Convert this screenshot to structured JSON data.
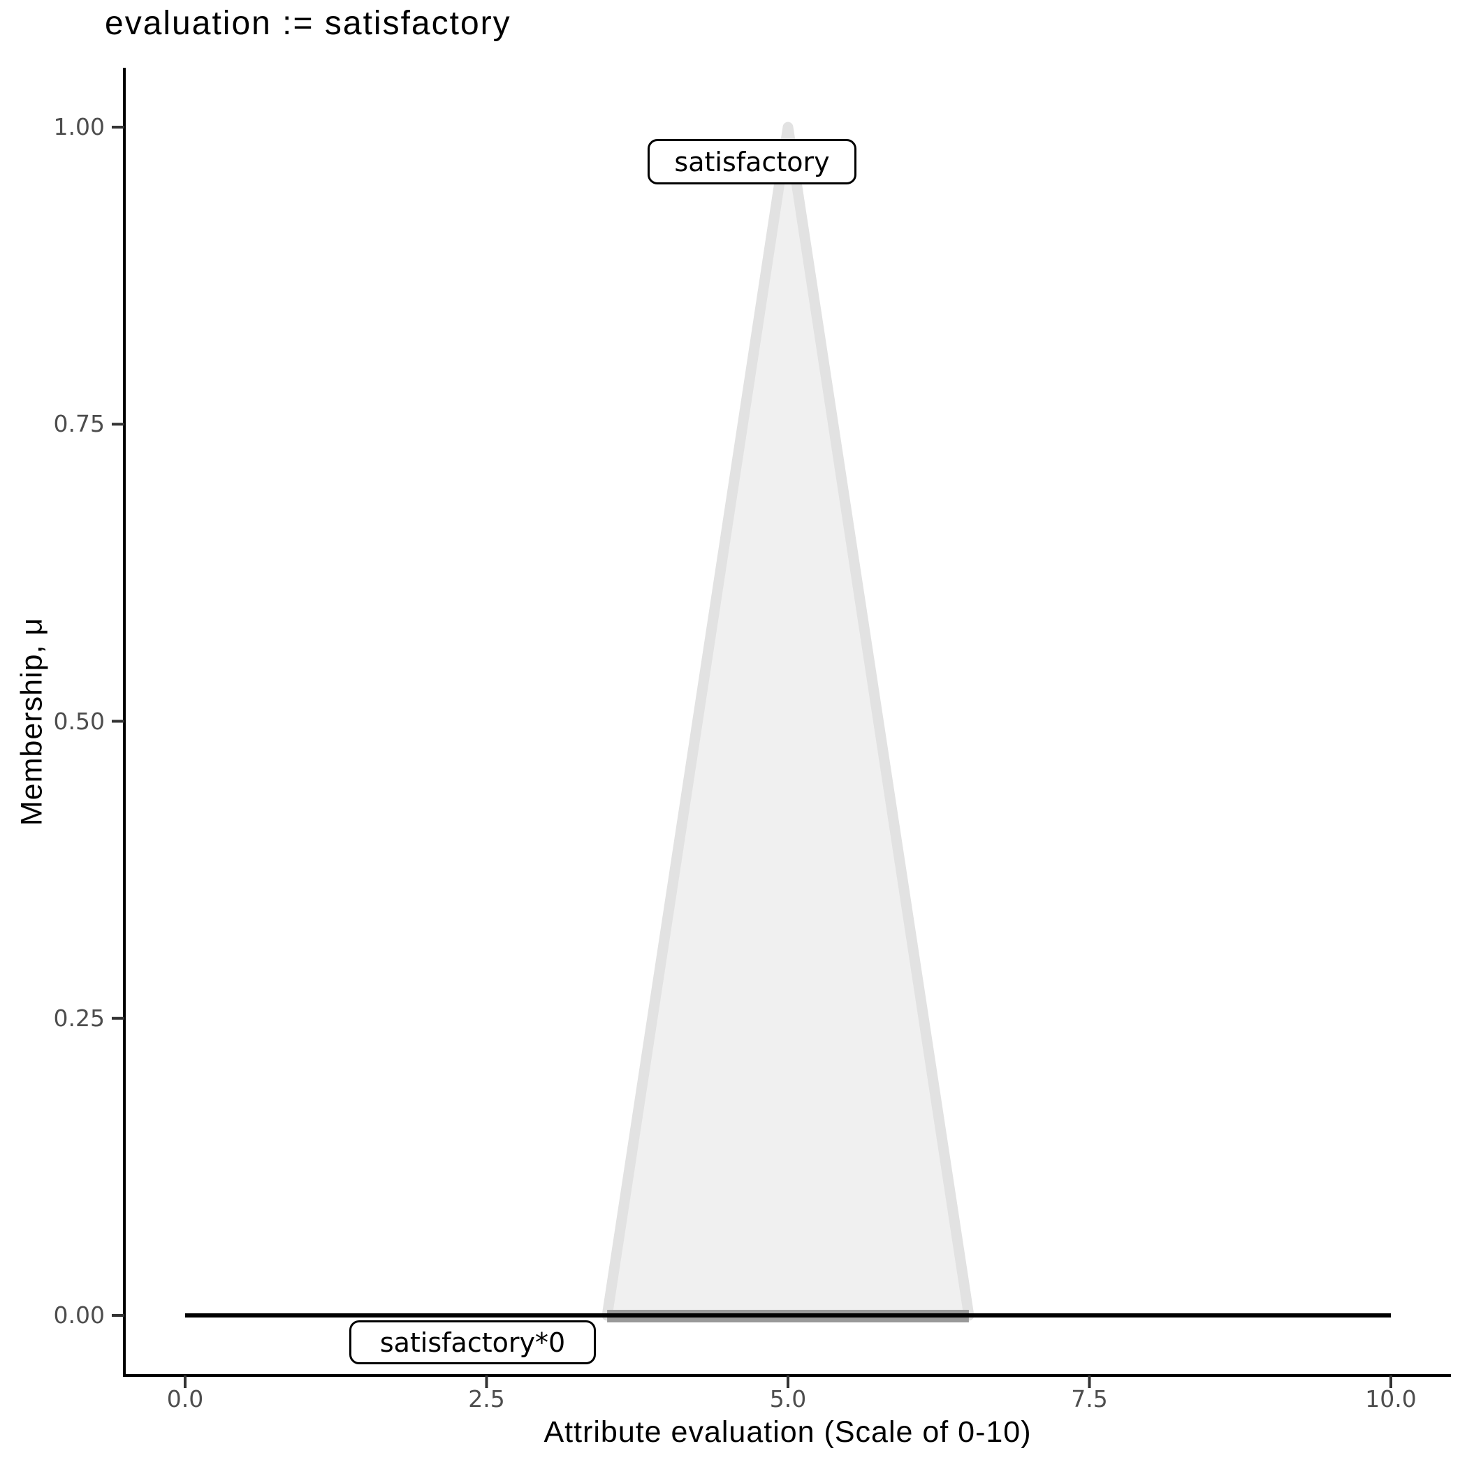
{
  "chart_data": {
    "type": "line",
    "title": "evaluation := satisfactory",
    "xlabel": "Attribute evaluation (Scale of 0-10)",
    "ylabel": "Membership, μ",
    "xlim": [
      0,
      10
    ],
    "ylim": [
      0,
      1
    ],
    "grid": false,
    "legend_position": "none",
    "x_ticks": [
      {
        "value": 0.0,
        "label": "0.0"
      },
      {
        "value": 2.5,
        "label": "2.5"
      },
      {
        "value": 5.0,
        "label": "5.0"
      },
      {
        "value": 7.5,
        "label": "7.5"
      },
      {
        "value": 10.0,
        "label": "10.0"
      }
    ],
    "y_ticks": [
      {
        "value": 0.0,
        "label": "0.00"
      },
      {
        "value": 0.25,
        "label": "0.25"
      },
      {
        "value": 0.5,
        "label": "0.50"
      },
      {
        "value": 0.75,
        "label": "0.75"
      },
      {
        "value": 1.0,
        "label": "1.00"
      }
    ],
    "series": [
      {
        "name": "satisfactory",
        "type": "area",
        "points": [
          [
            3.5,
            0
          ],
          [
            5,
            1
          ],
          [
            6.5,
            0
          ]
        ],
        "fill": "#F0F0F0",
        "stroke": "#E2E2E2",
        "base_stroke": "#999999"
      },
      {
        "name": "satisfactory*0",
        "type": "line",
        "points": [
          [
            0,
            0
          ],
          [
            10,
            0
          ]
        ],
        "stroke": "#000000"
      }
    ],
    "annotations": [
      {
        "text": "satisfactory",
        "x": 5,
        "y": 1
      },
      {
        "text": "satisfactory*0",
        "x": 2.2,
        "y": 0
      }
    ],
    "colors": {
      "axis_line": "#000000",
      "tick_mark": "#333333",
      "tick_label": "#4D4D4D",
      "title_text": "#000000"
    }
  }
}
